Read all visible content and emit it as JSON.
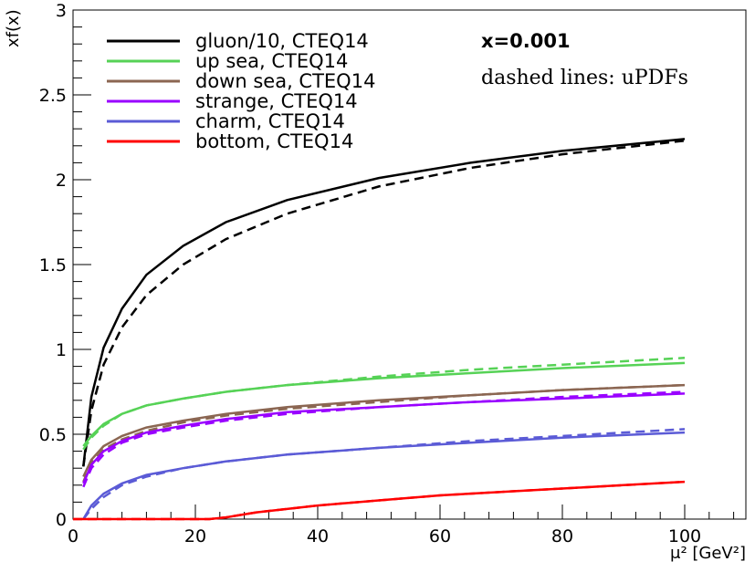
{
  "chart_data": {
    "type": "line",
    "title": "",
    "xlabel": "μ² [GeV²]",
    "ylabel": "xf(x)",
    "xlim": [
      0,
      110
    ],
    "ylim": [
      0,
      3
    ],
    "x_ticks": [
      "0",
      "20",
      "40",
      "60",
      "80",
      "100"
    ],
    "y_ticks": [
      "0",
      "0.5",
      "1",
      "1.5",
      "2",
      "2.5",
      "3"
    ],
    "grid": false,
    "legend_position": "top-left",
    "annotations": [
      "x=0.001",
      "dashed lines: uPDFs"
    ],
    "series": [
      {
        "name": "gluon/10, CTEQ14",
        "color": "#000000",
        "x": [
          1.69,
          3,
          5,
          8,
          12,
          18,
          25,
          35,
          50,
          65,
          80,
          100
        ],
        "solid": [
          0.31,
          0.72,
          1.01,
          1.24,
          1.44,
          1.61,
          1.75,
          1.88,
          2.01,
          2.1,
          2.17,
          2.24
        ],
        "dashed": [
          0.31,
          0.64,
          0.91,
          1.13,
          1.32,
          1.5,
          1.65,
          1.8,
          1.96,
          2.07,
          2.15,
          2.23
        ]
      },
      {
        "name": "up sea, CTEQ14",
        "color": "#56d256",
        "x": [
          1.69,
          3,
          5,
          8,
          12,
          18,
          25,
          35,
          50,
          65,
          80,
          100
        ],
        "solid": [
          0.43,
          0.49,
          0.56,
          0.62,
          0.67,
          0.71,
          0.75,
          0.79,
          0.83,
          0.86,
          0.89,
          0.92
        ],
        "dashed": [
          0.41,
          0.48,
          0.55,
          0.62,
          0.67,
          0.71,
          0.75,
          0.79,
          0.84,
          0.88,
          0.91,
          0.95
        ]
      },
      {
        "name": "down sea, CTEQ14",
        "color": "#8b6652",
        "x": [
          1.69,
          3,
          5,
          8,
          12,
          18,
          25,
          35,
          50,
          65,
          80,
          100
        ],
        "solid": [
          0.25,
          0.35,
          0.43,
          0.49,
          0.54,
          0.58,
          0.62,
          0.66,
          0.7,
          0.73,
          0.76,
          0.79
        ],
        "dashed": [
          0.22,
          0.33,
          0.41,
          0.47,
          0.52,
          0.57,
          0.61,
          0.65,
          0.69,
          0.73,
          0.76,
          0.79
        ]
      },
      {
        "name": "strange, CTEQ14",
        "color": "#9900ff",
        "x": [
          1.69,
          3,
          5,
          8,
          12,
          18,
          25,
          35,
          50,
          65,
          80,
          100
        ],
        "solid": [
          0.21,
          0.32,
          0.4,
          0.46,
          0.51,
          0.55,
          0.59,
          0.63,
          0.66,
          0.69,
          0.71,
          0.74
        ],
        "dashed": [
          0.19,
          0.3,
          0.38,
          0.45,
          0.5,
          0.54,
          0.58,
          0.62,
          0.66,
          0.69,
          0.72,
          0.75
        ]
      },
      {
        "name": "charm, CTEQ14",
        "color": "#5b5bd6",
        "x": [
          1.69,
          3,
          5,
          8,
          12,
          18,
          25,
          35,
          50,
          65,
          80,
          100
        ],
        "solid": [
          0.0,
          0.08,
          0.15,
          0.21,
          0.26,
          0.3,
          0.34,
          0.38,
          0.42,
          0.45,
          0.48,
          0.51
        ],
        "dashed": [
          0.0,
          0.06,
          0.13,
          0.2,
          0.25,
          0.3,
          0.34,
          0.38,
          0.42,
          0.46,
          0.49,
          0.53
        ]
      },
      {
        "name": "bottom, CTEQ14",
        "color": "#ff0000",
        "x": [
          0,
          10,
          22.3,
          25,
          30,
          40,
          50,
          60,
          70,
          80,
          90,
          100
        ],
        "solid": [
          0.0,
          0.0,
          0.0,
          0.01,
          0.04,
          0.08,
          0.11,
          0.14,
          0.16,
          0.18,
          0.2,
          0.22
        ],
        "dashed": [
          0.0,
          0.0,
          0.0,
          0.01,
          0.04,
          0.08,
          0.11,
          0.14,
          0.16,
          0.18,
          0.2,
          0.22
        ]
      }
    ]
  }
}
